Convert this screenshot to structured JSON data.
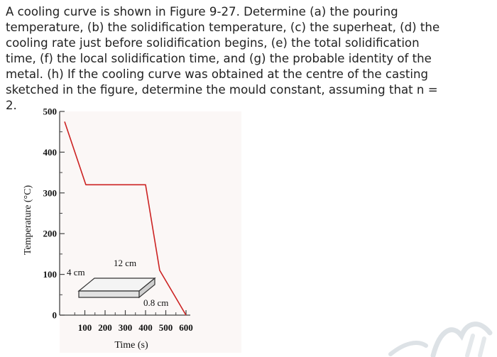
{
  "question": {
    "text": "A cooling curve is shown in Figure 9-27. Determine (a) the pouring\ntemperature, (b) the solidification temperature, (c) the superheat, (d) the\ncooling rate just before solidification begins, (e) the total solidification\ntime, (f) the local solidification time, and (g) the probable identity of the\nmetal. (h) If the cooling curve was obtained at the centre of the casting\nsketched in the figure, determine the mould constant, assuming that n =\n2."
  },
  "chart_data": {
    "type": "line",
    "title": "",
    "xlabel": "Time (s)",
    "ylabel": "Temperature (°C)",
    "xlim": [
      0,
      600
    ],
    "ylim": [
      0,
      500
    ],
    "x_tick_labels": [
      "100",
      "200",
      "300",
      "400",
      "500",
      "600"
    ],
    "y_tick_labels": [
      "0",
      "100",
      "200",
      "300",
      "400",
      "500"
    ],
    "grid": false,
    "series": [
      {
        "color": "#cc2222",
        "points": [
          {
            "x": 0,
            "y": 475
          },
          {
            "x": 105,
            "y": 320
          },
          {
            "x": 400,
            "y": 320
          },
          {
            "x": 470,
            "y": 110
          },
          {
            "x": 600,
            "y": 0
          }
        ]
      }
    ],
    "annotations": {
      "length_label": "12 cm",
      "width_label": "4 cm",
      "thickness_label": "0.8 cm"
    }
  },
  "colors": {
    "curve": "#cc2222",
    "axis": "#444444",
    "plot_bg": "#fbf7f6"
  }
}
